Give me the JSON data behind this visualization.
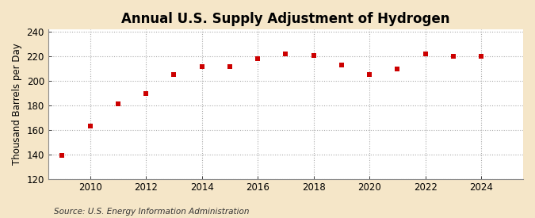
{
  "title": "Annual U.S. Supply Adjustment of Hydrogen",
  "ylabel": "Thousand Barrels per Day",
  "source": "Source: U.S. Energy Information Administration",
  "years": [
    2009,
    2010,
    2011,
    2012,
    2013,
    2014,
    2015,
    2016,
    2017,
    2018,
    2019,
    2020,
    2021,
    2022,
    2023,
    2024
  ],
  "values": [
    139,
    163,
    181,
    190,
    205,
    212,
    212,
    218,
    222,
    221,
    213,
    205,
    210,
    222,
    220,
    220
  ],
  "marker_color": "#cc0000",
  "marker": "s",
  "marker_size": 4,
  "figure_bg_color": "#f5e6c8",
  "plot_bg_color": "#ffffff",
  "grid_color": "#aaaaaa",
  "xlim": [
    2008.5,
    2025.5
  ],
  "ylim": [
    120,
    242
  ],
  "yticks": [
    120,
    140,
    160,
    180,
    200,
    220,
    240
  ],
  "xticks": [
    2010,
    2012,
    2014,
    2016,
    2018,
    2020,
    2022,
    2024
  ],
  "title_fontsize": 12,
  "label_fontsize": 8.5,
  "tick_fontsize": 8.5,
  "source_fontsize": 7.5
}
